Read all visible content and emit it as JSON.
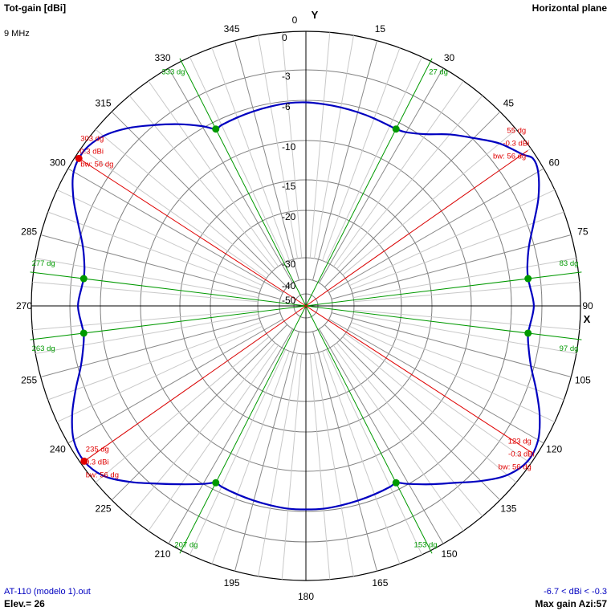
{
  "header": {
    "title": "Tot-gain [dBi]",
    "frequency": "9 MHz",
    "plane": "Horizontal plane"
  },
  "footer": {
    "file": "AT-110 (modelo 1).out",
    "elevation": "Elev.= 26",
    "range": "-6.7 < dBi < -0.3",
    "max_gain": "Max gain Azi:57"
  },
  "colors": {
    "pattern": "#0000c0",
    "beamwidth": "#e00000",
    "null": "#009900",
    "grid": "#7f7f7f",
    "axis": "#000000"
  },
  "chart_data": {
    "type": "polar",
    "axis_labels": {
      "y": "Y",
      "x": "X"
    },
    "radial_ticks": [
      "0",
      "-3",
      "-6",
      "-10",
      "-15",
      "-20",
      "-30",
      "-40",
      "-50"
    ],
    "radial_tick_values_db": [
      0,
      -3,
      -6,
      -10,
      -15,
      -20,
      -30,
      -40,
      -50
    ],
    "azimuth_labels": [
      "0",
      "15",
      "30",
      "45",
      "60",
      "75",
      "90",
      "105",
      "120",
      "135",
      "150",
      "165",
      "180",
      "195",
      "210",
      "225",
      "240",
      "255",
      "270",
      "285",
      "300",
      "315",
      "330",
      "345"
    ],
    "azimuth_label_values_deg": [
      0,
      15,
      30,
      45,
      60,
      75,
      90,
      105,
      120,
      135,
      150,
      165,
      180,
      195,
      210,
      225,
      240,
      255,
      270,
      285,
      300,
      315,
      330,
      345
    ],
    "pattern": {
      "name": "Tot-gain",
      "azimuth_deg": [
        0,
        5,
        10,
        15,
        20,
        25,
        27,
        30,
        35,
        40,
        45,
        50,
        55,
        57,
        60,
        65,
        70,
        75,
        80,
        83,
        85,
        90,
        95,
        97,
        100,
        105,
        110,
        115,
        120,
        125,
        130,
        135,
        140,
        145,
        150,
        153,
        155,
        160,
        165,
        170,
        175,
        180,
        185,
        190,
        195,
        200,
        205,
        207,
        210,
        215,
        220,
        225,
        230,
        235,
        240,
        245,
        250,
        255,
        260,
        263,
        265,
        270,
        275,
        277,
        280,
        285,
        290,
        295,
        300,
        305,
        310,
        315,
        320,
        325,
        330,
        333,
        335,
        340,
        345,
        350,
        355
      ],
      "gain_dbi": [
        -6.2,
        -6.3,
        -6.4,
        -6.5,
        -6.6,
        -6.7,
        -6.7,
        -6.5,
        -5.6,
        -4.2,
        -2.9,
        -1.7,
        -0.8,
        -0.3,
        -0.5,
        -1.4,
        -2.5,
        -3.5,
        -4.1,
        -4.2,
        -4.1,
        -3.8,
        -4.1,
        -4.2,
        -4.0,
        -3.3,
        -2.3,
        -1.3,
        -0.5,
        -0.3,
        -0.9,
        -2.1,
        -3.5,
        -4.8,
        -6.0,
        -6.7,
        -6.6,
        -6.5,
        -6.4,
        -6.3,
        -6.2,
        -6.2,
        -6.2,
        -6.3,
        -6.4,
        -6.5,
        -6.6,
        -6.7,
        -6.0,
        -4.8,
        -3.4,
        -2.0,
        -0.8,
        -0.3,
        -0.5,
        -1.3,
        -2.3,
        -3.3,
        -4.0,
        -4.2,
        -4.1,
        -3.8,
        -4.1,
        -4.2,
        -4.1,
        -3.5,
        -2.5,
        -1.4,
        -0.5,
        -0.3,
        -0.8,
        -1.8,
        -3.0,
        -4.4,
        -5.8,
        -6.7,
        -6.6,
        -6.5,
        -6.4,
        -6.3,
        -6.2
      ]
    },
    "null_markers": [
      {
        "azimuth_deg": 27,
        "gain_dbi": -6.7,
        "label": "27 dg"
      },
      {
        "azimuth_deg": 83,
        "gain_dbi": -4.2,
        "label": "83 dg"
      },
      {
        "azimuth_deg": 97,
        "gain_dbi": -4.2,
        "label": "97 dg"
      },
      {
        "azimuth_deg": 153,
        "gain_dbi": -6.7,
        "label": "153 dg"
      },
      {
        "azimuth_deg": 207,
        "gain_dbi": -6.7,
        "label": "207 dg"
      },
      {
        "azimuth_deg": 263,
        "gain_dbi": -4.2,
        "label": "263 dg"
      },
      {
        "azimuth_deg": 277,
        "gain_dbi": -4.2,
        "label": "277 dg"
      },
      {
        "azimuth_deg": 333,
        "gain_dbi": -6.7,
        "label": "333 dg"
      }
    ],
    "beamwidth_lines": [
      {
        "azimuth_deg": 55,
        "gain_dbi": -0.3,
        "labels": [
          "55 dg",
          "-0.3 dBi",
          "bw: 56 dg"
        ],
        "marker": false
      },
      {
        "azimuth_deg": 123,
        "gain_dbi": -0.3,
        "labels": [
          "123 dg",
          "-0.3 dBi",
          "bw: 56 dg"
        ],
        "marker": false
      },
      {
        "azimuth_deg": 235,
        "gain_dbi": -0.3,
        "labels": [
          "235 dg",
          "-0.3 dBi",
          "bw: 56 dg"
        ],
        "marker": true
      },
      {
        "azimuth_deg": 303,
        "gain_dbi": -0.3,
        "labels": [
          "303 dg",
          "-0.3 dBi",
          "bw: 56 dg"
        ],
        "marker": true
      }
    ]
  }
}
